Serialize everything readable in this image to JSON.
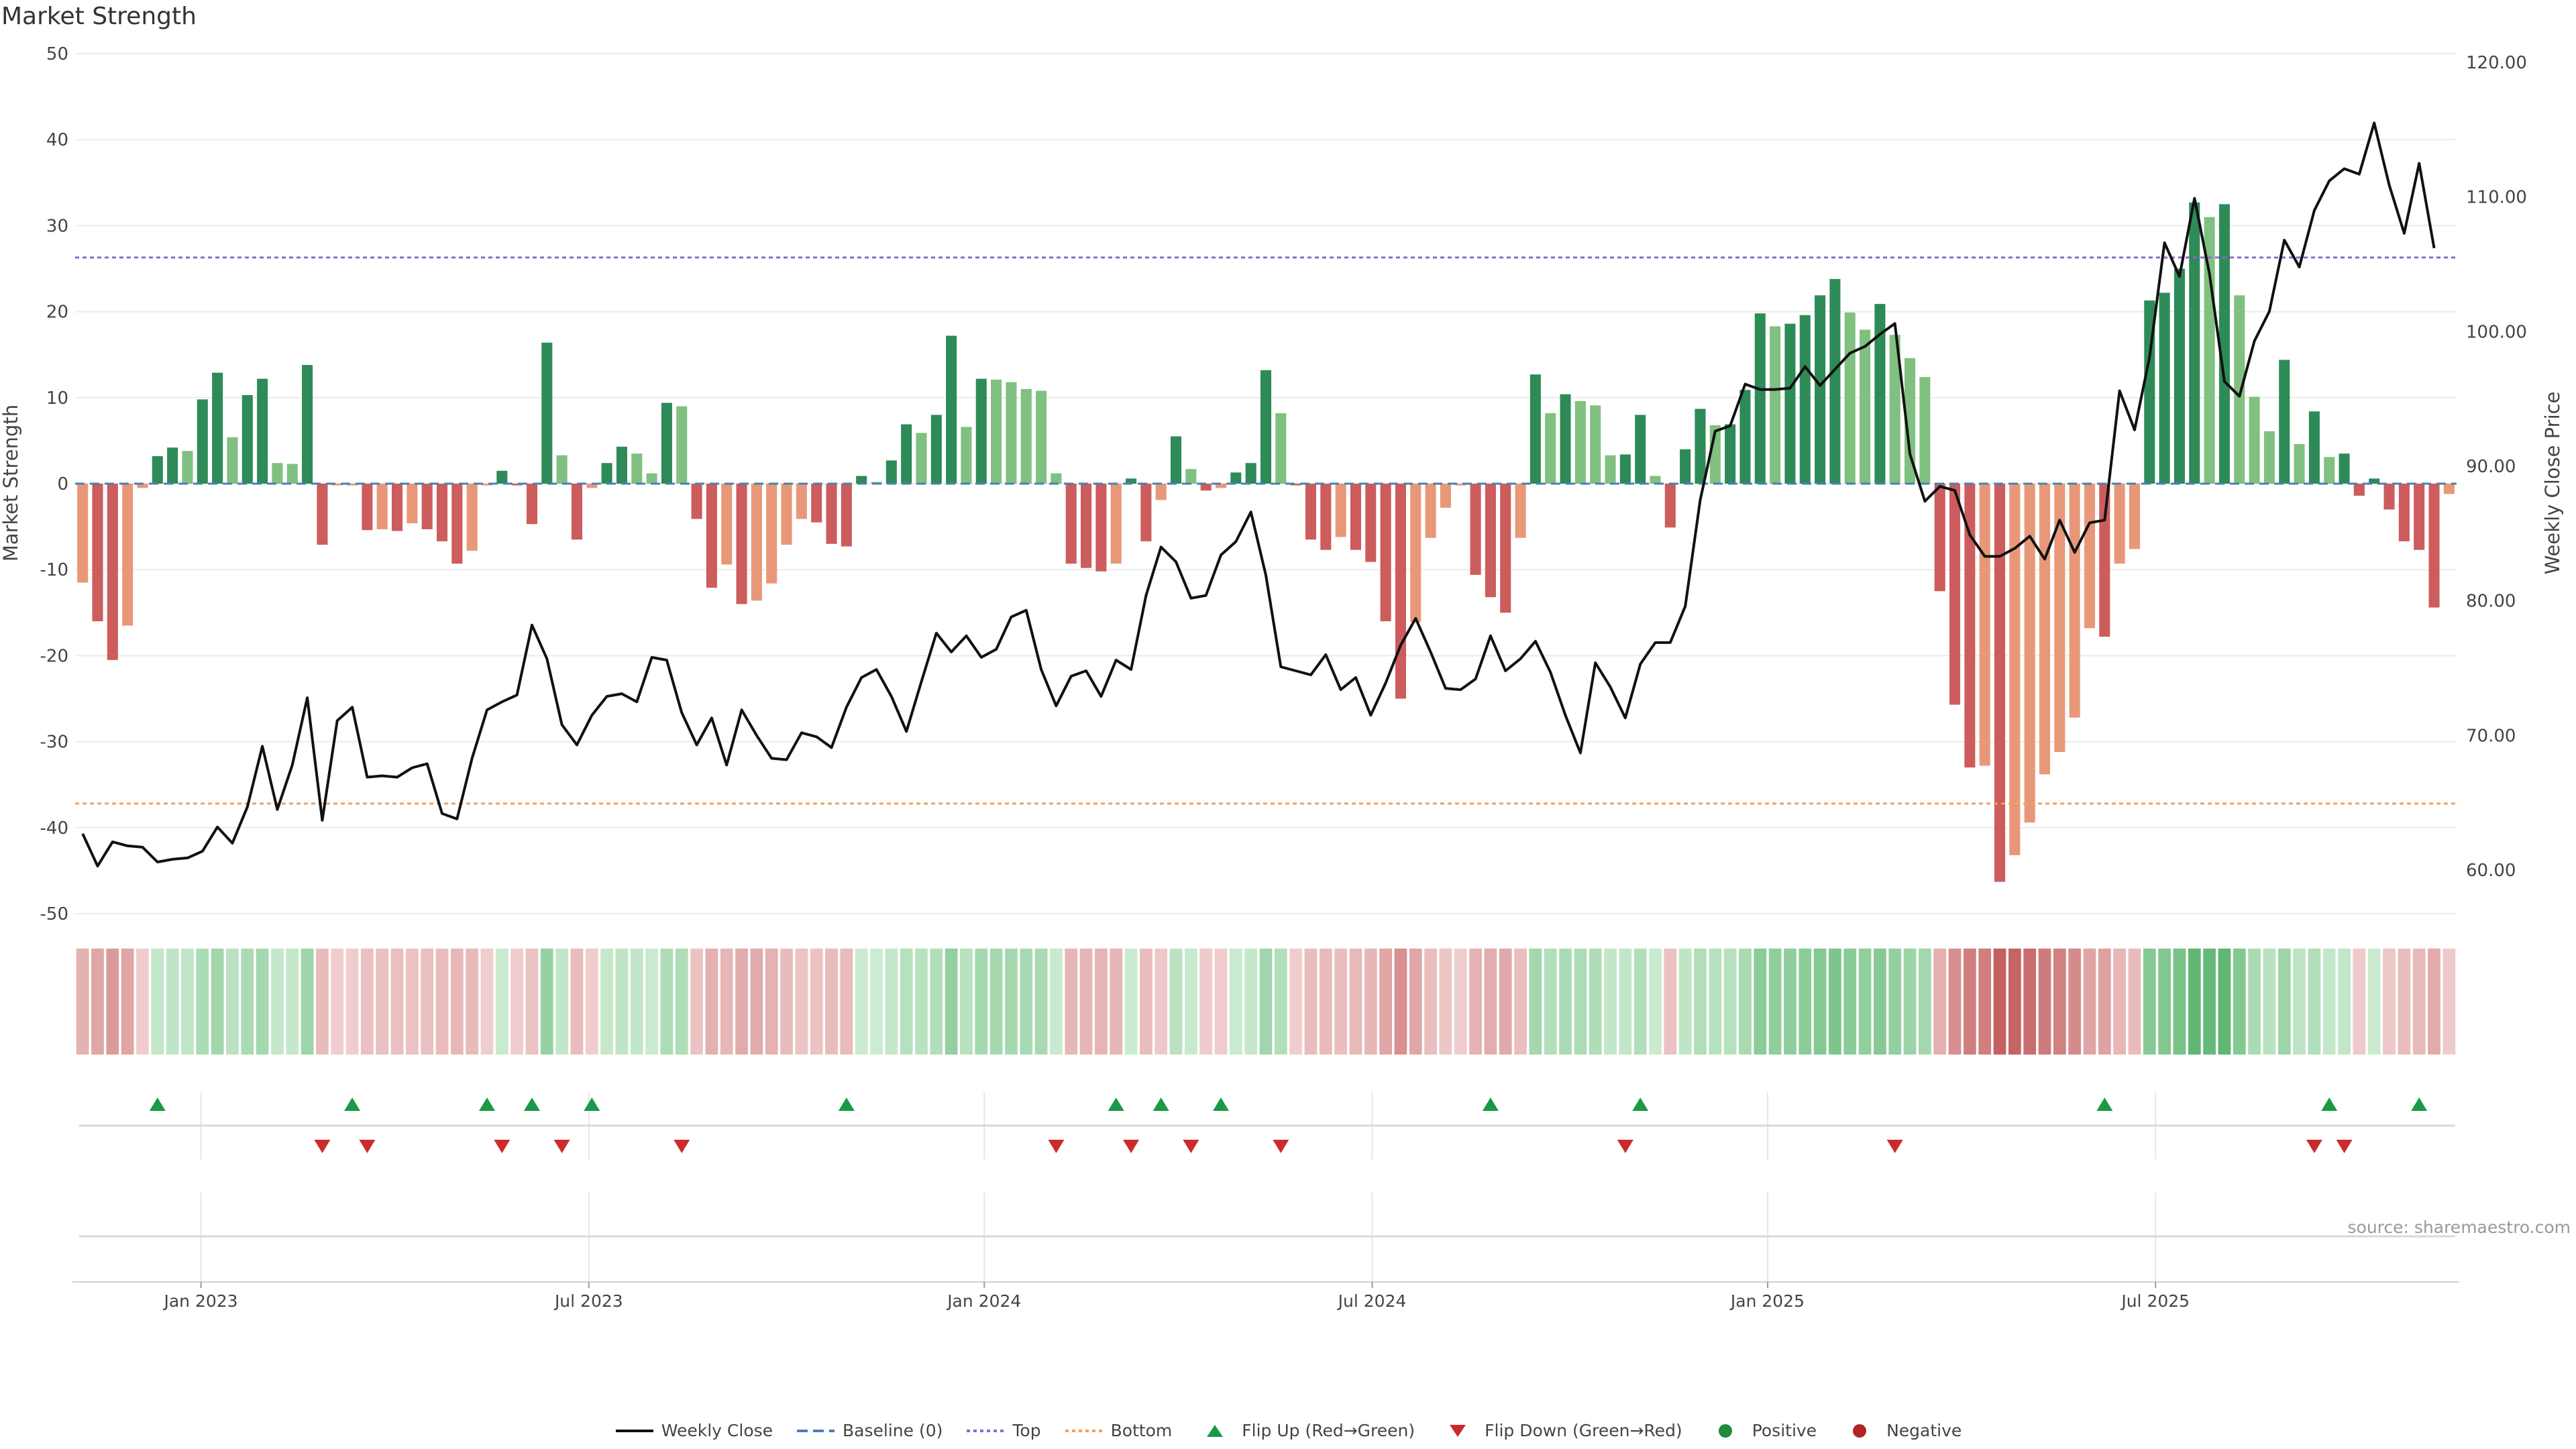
{
  "page": {
    "title": "Market Strength",
    "source": "source: sharemaestro.com"
  },
  "legend": [
    {
      "label": "Weekly Close",
      "kind": "line",
      "color": "#111111"
    },
    {
      "label": "Baseline (0)",
      "kind": "dash",
      "color": "#4a7fb5"
    },
    {
      "label": "Top",
      "kind": "dot",
      "color": "#8b68d6"
    },
    {
      "label": "Bottom",
      "kind": "dot",
      "color": "#f0a060"
    },
    {
      "label": "Flip Up (Red→Green)",
      "kind": "triangle-up",
      "color": "#1a9a46"
    },
    {
      "label": "Flip Down (Green→Red)",
      "kind": "triangle-down",
      "color": "#cc2b2b"
    },
    {
      "label": "Positive",
      "kind": "circle",
      "color": "#1f8a3a"
    },
    {
      "label": "Negative",
      "kind": "circle",
      "color": "#b02525"
    }
  ],
  "chart_data": {
    "type": "bar",
    "title": "Market Strength",
    "ylabel": "Market Strength",
    "y2label": "Weekly Close Price",
    "ylim": [
      -50,
      50
    ],
    "y2lim": [
      57,
      120
    ],
    "yticks": [
      -50,
      -40,
      -30,
      -20,
      -10,
      0,
      10,
      20,
      30,
      40,
      50
    ],
    "y2ticks": [
      "60.00",
      "70.00",
      "80.00",
      "90.00",
      "100.00",
      "110.00",
      "120.00"
    ],
    "y2tick_values": [
      60,
      70,
      80,
      90,
      100,
      110,
      120
    ],
    "top_line": 26.3,
    "bottom_line": -37.2,
    "grid": true,
    "legend_position": "bottom-center",
    "x_tick_labels": [
      "Jan 2023",
      "Jul 2023",
      "Jan 2024",
      "Jul 2024",
      "Jan 2025",
      "Jul 2025"
    ],
    "x_tick_weeks": [
      8.4,
      34.3,
      60.7,
      86.6,
      113,
      138.9
    ],
    "series": [
      {
        "name": "Market Strength",
        "values": [
          -11.5,
          -16,
          -20.5,
          -16.5,
          -0.5,
          3.2,
          4.2,
          3.8,
          9.8,
          12.9,
          5.4,
          10.3,
          12.2,
          2.4,
          2.3,
          13.8,
          -7.1,
          -0.2,
          -0.2,
          -5.4,
          -5.3,
          -5.5,
          -4.6,
          -5.3,
          -6.7,
          -9.3,
          -7.8,
          -0.2,
          1.5,
          -0.2,
          -4.7,
          16.4,
          3.3,
          -6.5,
          -0.5,
          2.4,
          4.3,
          3.5,
          1.2,
          9.4,
          9.0,
          -4.1,
          -12.1,
          -9.4,
          -14,
          -13.6,
          -11.6,
          -7.1,
          -4.1,
          -4.5,
          -7,
          -7.3,
          0.9,
          0.2,
          2.7,
          6.9,
          5.9,
          8,
          17.2,
          6.6,
          12.2,
          12.1,
          11.8,
          11.0,
          10.8,
          1.2,
          -9.3,
          -9.8,
          -10.2,
          -9.3,
          0.6,
          -6.7,
          -1.9,
          5.5,
          1.7,
          -0.8,
          -0.5,
          1.3,
          2.4,
          13.2,
          8.2,
          -0.2,
          -6.5,
          -7.7,
          -6.2,
          -7.7,
          -9.1,
          -16,
          -25,
          -16.1,
          -6.3,
          -2.8,
          -0.2,
          -10.6,
          -13.2,
          -15,
          -6.3,
          12.7,
          8.2,
          10.4,
          9.6,
          9.1,
          3.3,
          3.4,
          8,
          0.9,
          -5.1,
          4.0,
          8.7,
          6.8,
          6.9,
          10.9,
          19.8,
          18.3,
          18.6,
          19.6,
          21.9,
          23.8,
          19.9,
          17.9,
          20.9,
          17.3,
          14.6,
          12.4,
          -12.5,
          -25.7,
          -33,
          -32.8,
          -46.3,
          -43.2,
          -39.4,
          -33.8,
          -31.2,
          -27.2,
          -16.8,
          -17.8,
          -9.3,
          -7.6,
          21.3,
          22.2,
          25,
          32.7,
          31,
          32.5,
          21.9,
          10.1,
          6.1,
          14.4,
          4.6,
          8.4,
          3.1,
          3.5,
          -1.4,
          0.6,
          -3,
          -6.7,
          -7.7,
          -14.4,
          -1.2
        ]
      },
      {
        "name": "Weekly Close",
        "values": [
          62.7,
          60.3,
          62.1,
          61.8,
          61.7,
          60.6,
          60.8,
          60.9,
          61.4,
          63.2,
          62,
          64.7,
          69.2,
          64.5,
          67.8,
          72.8,
          63.7,
          71.1,
          72.1,
          66.9,
          67,
          66.9,
          67.6,
          67.9,
          64.2,
          63.8,
          68.3,
          71.9,
          72.5,
          73,
          78.2,
          75.7,
          70.8,
          69.3,
          71.5,
          72.9,
          73.1,
          72.5,
          75.8,
          75.6,
          71.7,
          69.3,
          71.3,
          67.8,
          71.9,
          70,
          68.3,
          68.2,
          70.2,
          69.9,
          69.1,
          72.1,
          74.3,
          74.9,
          72.9,
          70.3,
          74,
          77.6,
          76.2,
          77.4,
          75.8,
          76.4,
          78.8,
          79.3,
          74.9,
          72.2,
          74.4,
          74.8,
          72.9,
          75.6,
          74.9,
          80.4,
          84,
          82.9,
          80.2,
          80.4,
          83.4,
          84.4,
          86.6,
          81.9,
          75.1,
          74.8,
          74.5,
          76,
          73.4,
          74.3,
          71.5,
          73.9,
          76.7,
          78.7,
          76.2,
          73.5,
          73.4,
          74.2,
          77.4,
          74.8,
          75.7,
          77,
          74.7,
          71.5,
          68.7,
          75.4,
          73.6,
          71.3,
          75.3,
          76.9,
          76.9,
          79.6,
          87.5,
          92.6,
          93,
          96.1,
          95.7,
          95.7,
          95.8,
          97.4,
          96,
          97.2,
          98.4,
          98.9,
          99.8,
          100.6,
          90.9,
          87.4,
          88.5,
          88.2,
          84.9,
          83.3,
          83.3,
          83.9,
          84.8,
          83.1,
          86,
          83.6,
          85.8,
          86,
          95.6,
          92.7,
          98.1,
          106.6,
          104.1,
          109.9,
          104.3,
          96.3,
          95.2,
          99.3,
          101.5,
          106.8,
          104.8,
          109,
          111.2,
          112.1,
          111.7,
          115.5,
          110.9,
          107.3,
          112.5,
          106.2
        ]
      },
      {
        "name": "Flip Up (Red→Green)",
        "weeks": [
          5,
          18,
          27,
          30,
          34,
          51,
          69,
          72,
          76,
          94,
          104,
          135,
          150,
          156
        ]
      },
      {
        "name": "Flip Down (Green→Red)",
        "weeks": [
          16,
          19,
          28,
          32,
          40,
          65,
          70,
          74,
          80,
          103,
          121,
          149,
          151
        ]
      }
    ]
  }
}
